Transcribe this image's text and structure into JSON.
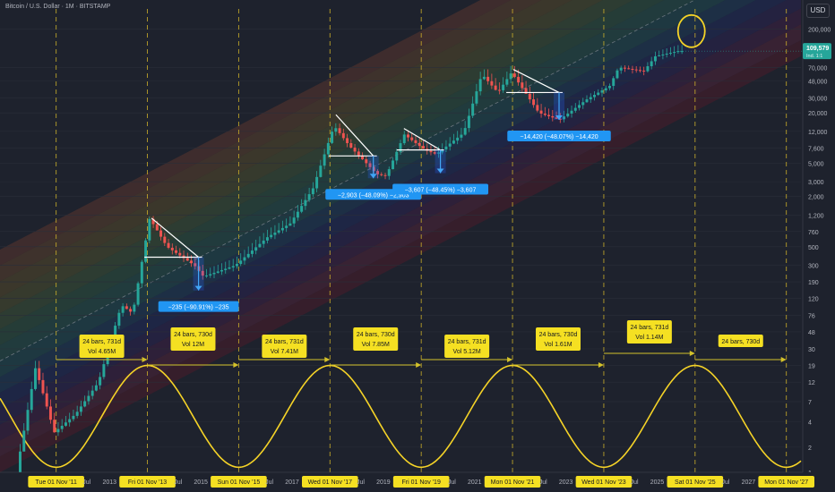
{
  "header": {
    "title": "Bitcoin / U.S. Dollar · 1M · BITSTAMP",
    "currency_button": "USD"
  },
  "price_label": {
    "value": "109,579",
    "sub": "Ind. 1:1"
  },
  "chart_data": {
    "type": "candlestick",
    "title": "Bitcoin / U.S. Dollar · 1M · BITSTAMP",
    "y_scale": "log",
    "ylim": [
      1,
      350000
    ],
    "y_ticks": [
      {
        "value": 200000,
        "label": "200,000"
      },
      {
        "value": 70000,
        "label": "70,000"
      },
      {
        "value": 48000,
        "label": "48,000"
      },
      {
        "value": 30000,
        "label": "30,000"
      },
      {
        "value": 20000,
        "label": "20,000"
      },
      {
        "value": 12000,
        "label": "12,000"
      },
      {
        "value": 7600,
        "label": "7,600"
      },
      {
        "value": 5000,
        "label": "5,000"
      },
      {
        "value": 3000,
        "label": "3,000"
      },
      {
        "value": 2000,
        "label": "2,000"
      },
      {
        "value": 1200,
        "label": "1,200"
      },
      {
        "value": 760,
        "label": "760"
      },
      {
        "value": 500,
        "label": "500"
      },
      {
        "value": 300,
        "label": "300"
      },
      {
        "value": 190,
        "label": "190"
      },
      {
        "value": 120,
        "label": "120"
      },
      {
        "value": 76,
        "label": "76"
      },
      {
        "value": 48,
        "label": "48"
      },
      {
        "value": 30,
        "label": "30"
      },
      {
        "value": 19,
        "label": "19"
      },
      {
        "value": 12,
        "label": "12"
      },
      {
        "value": 7,
        "label": "7"
      },
      {
        "value": 4,
        "label": "4"
      },
      {
        "value": 2,
        "label": "2"
      },
      {
        "value": 1,
        "label": "1"
      }
    ],
    "x_range": [
      2010.6,
      2028.15
    ],
    "x_ticks": [
      {
        "t": 2011.83,
        "label": "Tue 01 Nov '11",
        "highlight": true
      },
      {
        "t": 2012.5,
        "label": "Jul"
      },
      {
        "t": 2013.0,
        "label": "2013"
      },
      {
        "t": 2013.83,
        "label": "Fri 01 Nov '13",
        "highlight": true
      },
      {
        "t": 2014.5,
        "label": "Jul"
      },
      {
        "t": 2015.0,
        "label": "2015"
      },
      {
        "t": 2015.83,
        "label": "Sun 01 Nov '15",
        "highlight": true
      },
      {
        "t": 2016.5,
        "label": "Jul"
      },
      {
        "t": 2017.0,
        "label": "2017"
      },
      {
        "t": 2017.83,
        "label": "Wed 01 Nov '17",
        "highlight": true
      },
      {
        "t": 2018.5,
        "label": "Jul"
      },
      {
        "t": 2019.0,
        "label": "2019"
      },
      {
        "t": 2019.83,
        "label": "Fri 01 Nov '19",
        "highlight": true
      },
      {
        "t": 2020.5,
        "label": "Jul"
      },
      {
        "t": 2021.0,
        "label": "2021"
      },
      {
        "t": 2021.83,
        "label": "Mon 01 Nov '21",
        "highlight": true
      },
      {
        "t": 2022.5,
        "label": "Jul"
      },
      {
        "t": 2023.0,
        "label": "2023"
      },
      {
        "t": 2023.83,
        "label": "Wed 01 Nov '23",
        "highlight": true
      },
      {
        "t": 2024.5,
        "label": "Jul"
      },
      {
        "t": 2025.0,
        "label": "2025"
      },
      {
        "t": 2025.83,
        "label": "Sat 01 Nov '25",
        "highlight": true
      },
      {
        "t": 2026.5,
        "label": "Jul"
      },
      {
        "t": 2027.0,
        "label": "2027"
      },
      {
        "t": 2027.83,
        "label": "Mon 01 Nov '27",
        "highlight": true
      }
    ],
    "cycle_lines": [
      2011.83,
      2013.83,
      2015.83,
      2017.83,
      2019.83,
      2021.83,
      2023.83,
      2025.83,
      2027.83
    ],
    "price_path": [
      [
        2011.0,
        1.0
      ],
      [
        2011.42,
        18
      ],
      [
        2011.83,
        3
      ],
      [
        2012.3,
        5
      ],
      [
        2012.8,
        12
      ],
      [
        2013.3,
        100
      ],
      [
        2013.55,
        80
      ],
      [
        2013.92,
        1100
      ],
      [
        2014.3,
        500
      ],
      [
        2014.9,
        300
      ],
      [
        2015.1,
        220
      ],
      [
        2015.8,
        300
      ],
      [
        2016.5,
        650
      ],
      [
        2017.0,
        950
      ],
      [
        2017.5,
        2500
      ],
      [
        2017.96,
        14000
      ],
      [
        2018.3,
        8000
      ],
      [
        2018.9,
        3700
      ],
      [
        2019.1,
        3500
      ],
      [
        2019.5,
        11000
      ],
      [
        2019.95,
        7200
      ],
      [
        2020.2,
        6400
      ],
      [
        2020.8,
        11500
      ],
      [
        2021.2,
        58000
      ],
      [
        2021.55,
        35000
      ],
      [
        2021.85,
        61000
      ],
      [
        2022.45,
        20000
      ],
      [
        2022.9,
        16500
      ],
      [
        2023.5,
        29000
      ],
      [
        2024.0,
        42000
      ],
      [
        2024.2,
        70000
      ],
      [
        2024.75,
        63000
      ],
      [
        2025.0,
        95000
      ],
      [
        2025.5,
        109579
      ]
    ],
    "bands": {
      "base_at_2011": 1.3,
      "base_at_2027": 45000,
      "count": 14,
      "ratio": 1.55,
      "colors": [
        "#4a1c2a",
        "#4e2238",
        "#3c1f44",
        "#2a2250",
        "#1f2a5a",
        "#1e3a5a",
        "#1f4a52",
        "#24514a",
        "#2b5240",
        "#3a5236",
        "#4a4f2e",
        "#54482a",
        "#5a3f2b",
        "#5a342d"
      ]
    },
    "wave": {
      "period_years": 4,
      "peak_at": 2013.83,
      "color": "#f5d327"
    },
    "range_annotations": [
      {
        "label": "24 bars, 731d",
        "vol": "Vol 4.65M",
        "from": 2011.83,
        "to": 2013.83,
        "mode": "center"
      },
      {
        "label": "24 bars, 730d",
        "vol": "Vol 12M",
        "from": 2013.83,
        "to": 2015.83,
        "mode": "low"
      },
      {
        "label": "24 bars, 731d",
        "vol": "Vol 7.41M",
        "from": 2015.83,
        "to": 2017.83,
        "mode": "center"
      },
      {
        "label": "24 bars, 730d",
        "vol": "Vol 7.85M",
        "from": 2017.83,
        "to": 2019.83,
        "mode": "low"
      },
      {
        "label": "24 bars, 731d",
        "vol": "Vol 5.12M",
        "from": 2019.83,
        "to": 2021.83,
        "mode": "center"
      },
      {
        "label": "24 bars, 730d",
        "vol": "Vol 1.61M",
        "from": 2021.83,
        "to": 2023.83,
        "mode": "low"
      },
      {
        "label": "24 bars, 731d",
        "vol": "Vol 1.14M",
        "from": 2023.83,
        "to": 2025.83,
        "mode": "high"
      },
      {
        "label": "24 bars, 730d",
        "vol": "",
        "from": 2025.83,
        "to": 2027.83,
        "mode": "center"
      }
    ],
    "drawdowns": [
      {
        "label": "−235 (−90.91%) −235",
        "t_from": 2013.92,
        "t_to": 2014.95,
        "p_top": 1100,
        "p_neck": 375,
        "p_low": 150
      },
      {
        "label": "−2,903 (−48.09%) −2,903",
        "t_from": 2017.96,
        "t_to": 2018.78,
        "p_top": 19000,
        "p_neck": 6100,
        "p_low": 3300
      },
      {
        "label": "−3,607 (−48.45%) −3,607",
        "t_from": 2019.45,
        "t_to": 2020.25,
        "p_top": 13000,
        "p_neck": 7200,
        "p_low": 3800
      },
      {
        "label": "−14,420 (−48.07%) −14,420",
        "t_from": 2021.85,
        "t_to": 2022.85,
        "p_top": 66000,
        "p_neck": 35000,
        "p_low": 16500
      }
    ],
    "target_circle": {
      "t": 2025.75,
      "p": 190000
    }
  }
}
